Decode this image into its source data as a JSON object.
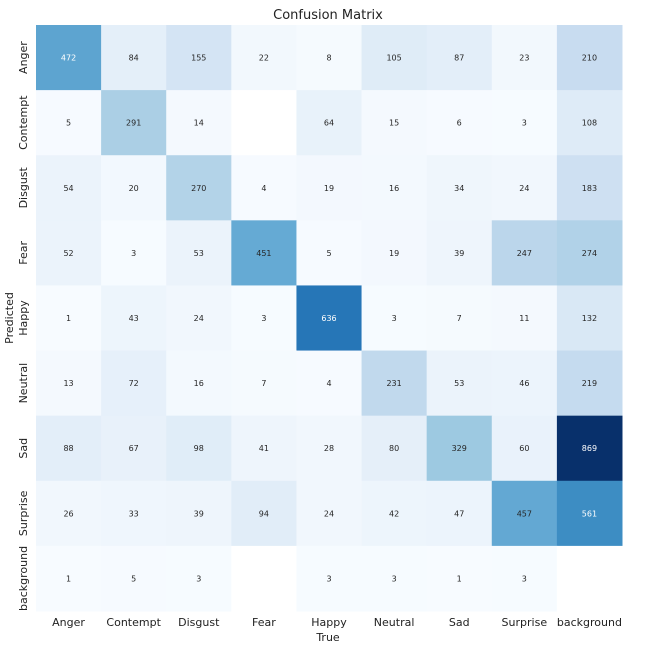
{
  "chart_data": {
    "type": "heatmap",
    "title": "Confusion Matrix",
    "xlabel": "True",
    "ylabel": "Predicted",
    "x_categories": [
      "Anger",
      "Contempt",
      "Disgust",
      "Fear",
      "Happy",
      "Neutral",
      "Sad",
      "Surprise",
      "background"
    ],
    "y_categories": [
      "Anger",
      "Contempt",
      "Disgust",
      "Fear",
      "Happy",
      "Neutral",
      "Sad",
      "Surprise",
      "background"
    ],
    "colormap": "Blues",
    "value_range": [
      0,
      869
    ],
    "values": [
      [
        472,
        84,
        155,
        22,
        8,
        105,
        87,
        23,
        210
      ],
      [
        5,
        291,
        14,
        null,
        64,
        15,
        6,
        3,
        108
      ],
      [
        54,
        20,
        270,
        4,
        19,
        16,
        34,
        24,
        183
      ],
      [
        52,
        3,
        53,
        451,
        5,
        19,
        39,
        247,
        274
      ],
      [
        1,
        43,
        24,
        3,
        636,
        3,
        7,
        11,
        132
      ],
      [
        13,
        72,
        16,
        7,
        4,
        231,
        53,
        46,
        219
      ],
      [
        88,
        67,
        98,
        41,
        28,
        80,
        329,
        60,
        869
      ],
      [
        26,
        33,
        39,
        94,
        24,
        42,
        47,
        457,
        561
      ],
      [
        1,
        5,
        3,
        null,
        3,
        3,
        1,
        3,
        null
      ]
    ]
  }
}
